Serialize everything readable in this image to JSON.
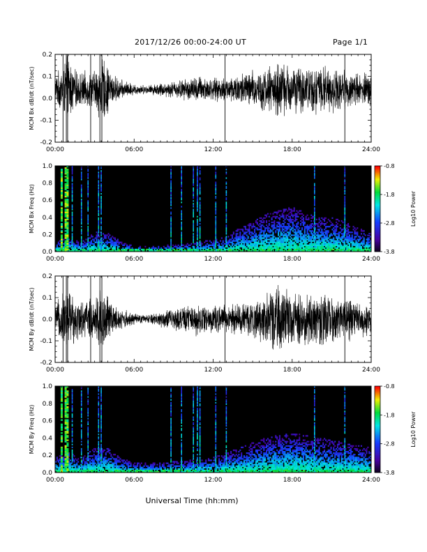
{
  "header": {
    "title": "2017/12/26  00:00-24:00 UT",
    "page": "Page 1/1"
  },
  "footer": {
    "xlabel": "Universal Time (hh:mm)"
  },
  "chart_data": [
    {
      "type": "line",
      "ylabel": "MCM Bx dB/dt (nT/sec)",
      "ylim": [
        -0.2,
        0.2
      ],
      "yticks": [
        "0.2",
        "0.1",
        "0.0",
        "-0.1",
        "-0.2"
      ],
      "xticks": [
        "00:00",
        "06:00",
        "12:00",
        "18:00",
        "24:00"
      ],
      "xlim_hours": [
        0,
        24
      ],
      "envelope": {
        "hours": [
          0,
          0.5,
          1.0,
          1.5,
          2.0,
          3.0,
          3.5,
          4.0,
          4.5,
          5.0,
          6.0,
          7.0,
          8.0,
          9.0,
          10.0,
          11.0,
          12.0,
          13.0,
          14.0,
          15.0,
          16.0,
          17.0,
          18.0,
          19.0,
          20.0,
          21.0,
          22.0,
          23.0,
          24.0
        ],
        "amplitude": [
          0.05,
          0.08,
          0.12,
          0.07,
          0.06,
          0.07,
          0.12,
          0.09,
          0.05,
          0.035,
          0.02,
          0.015,
          0.025,
          0.03,
          0.04,
          0.05,
          0.04,
          0.045,
          0.06,
          0.07,
          0.08,
          0.1,
          0.09,
          0.08,
          0.09,
          0.08,
          0.07,
          0.06,
          0.06
        ],
        "baseline": 0.04
      }
    },
    {
      "type": "heatmap",
      "ylabel": "MCM Bx Freq (Hz)",
      "ylim": [
        0.0,
        1.0
      ],
      "yticks": [
        "1.0",
        "0.8",
        "0.6",
        "0.4",
        "0.2",
        "0.0"
      ],
      "xticks": [
        "00:00",
        "06:00",
        "12:00",
        "18:00",
        "24:00"
      ],
      "colorbar": {
        "label": "Log10 Power",
        "ticks": [
          "-0.8",
          "-1.8",
          "-2.8",
          "-3.8"
        ],
        "range": [
          -3.8,
          -0.8
        ]
      },
      "noise_profile": {
        "hours": [
          0,
          1,
          2,
          3,
          4,
          5,
          6,
          8,
          10,
          12,
          13,
          14,
          15,
          16,
          17,
          18,
          19,
          20,
          21,
          22,
          23,
          24
        ],
        "height": [
          0.1,
          0.15,
          0.1,
          0.2,
          0.2,
          0.1,
          0.06,
          0.06,
          0.08,
          0.12,
          0.15,
          0.25,
          0.3,
          0.38,
          0.42,
          0.45,
          0.4,
          0.35,
          0.35,
          0.3,
          0.25,
          0.2
        ]
      },
      "bursts_hours": [
        0.5,
        0.8,
        0.95,
        1.3,
        2.0,
        2.5,
        3.3,
        3.5,
        8.8,
        9.6,
        10.5,
        10.8,
        11.0,
        12.2,
        13.0,
        19.7,
        22.0
      ]
    },
    {
      "type": "line",
      "ylabel": "MCM By dB/dt (nT/sec)",
      "ylim": [
        -0.2,
        0.2
      ],
      "yticks": [
        "0.2",
        "0.1",
        "0.0",
        "-0.1",
        "-0.2"
      ],
      "xticks": [
        "00:00",
        "06:00",
        "12:00",
        "18:00",
        "24:00"
      ],
      "xlim_hours": [
        0,
        24
      ],
      "envelope": {
        "hours": [
          0,
          0.5,
          1.0,
          1.5,
          2.0,
          3.0,
          3.5,
          4.0,
          4.5,
          5.0,
          6.0,
          7.0,
          8.0,
          9.0,
          10.0,
          11.0,
          12.0,
          13.0,
          14.0,
          15.0,
          16.0,
          17.0,
          18.0,
          19.0,
          20.0,
          21.0,
          22.0,
          23.0,
          24.0
        ],
        "amplitude": [
          0.05,
          0.09,
          0.13,
          0.08,
          0.07,
          0.08,
          0.13,
          0.09,
          0.05,
          0.04,
          0.02,
          0.015,
          0.03,
          0.04,
          0.05,
          0.06,
          0.05,
          0.05,
          0.06,
          0.07,
          0.09,
          0.12,
          0.1,
          0.09,
          0.1,
          0.09,
          0.08,
          0.07,
          0.06
        ],
        "baseline": 0.0
      }
    },
    {
      "type": "heatmap",
      "ylabel": "MCM By Freq (Hz)",
      "ylim": [
        0.0,
        1.0
      ],
      "yticks": [
        "1.0",
        "0.8",
        "0.6",
        "0.4",
        "0.2",
        "0.0"
      ],
      "xticks": [
        "00:00",
        "06:00",
        "12:00",
        "18:00",
        "24:00"
      ],
      "colorbar": {
        "label": "Log10 Power",
        "ticks": [
          "-0.8",
          "-1.8",
          "-2.8",
          "-3.8"
        ],
        "range": [
          -3.8,
          -0.8
        ]
      },
      "noise_profile": {
        "hours": [
          0,
          1,
          2,
          3,
          4,
          5,
          6,
          8,
          10,
          12,
          13,
          14,
          15,
          16,
          17,
          18,
          19,
          20,
          21,
          22,
          23,
          24
        ],
        "height": [
          0.15,
          0.2,
          0.15,
          0.25,
          0.25,
          0.15,
          0.1,
          0.1,
          0.12,
          0.15,
          0.2,
          0.25,
          0.3,
          0.35,
          0.38,
          0.4,
          0.38,
          0.35,
          0.33,
          0.3,
          0.28,
          0.25
        ]
      },
      "bursts_hours": [
        0.5,
        0.8,
        0.95,
        1.3,
        2.0,
        2.5,
        3.3,
        3.5,
        8.8,
        9.6,
        10.5,
        10.8,
        11.0,
        12.2,
        13.0,
        19.7,
        22.0
      ]
    }
  ]
}
